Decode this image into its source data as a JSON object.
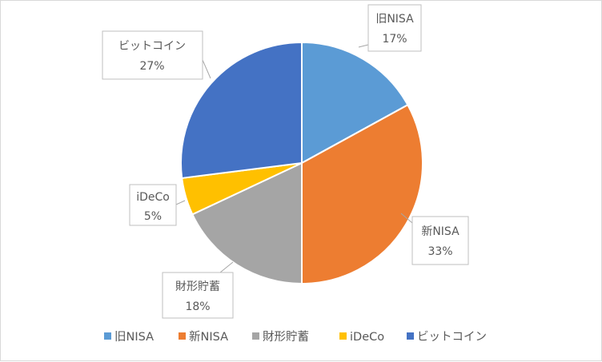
{
  "chart_data": {
    "type": "pie",
    "title": "",
    "categories": [
      "旧NISA",
      "新NISA",
      "財形貯蓄",
      "iDeCo",
      "ビットコイン"
    ],
    "values": [
      17,
      33,
      18,
      5,
      27
    ],
    "value_labels": [
      "17%",
      "33%",
      "18%",
      "5%",
      "27%"
    ],
    "colors": [
      "#5B9BD5",
      "#ED7D31",
      "#A5A5A5",
      "#FFC000",
      "#4472C4"
    ],
    "legend_position": "bottom",
    "start_angle": "12 o'clock, clockwise"
  }
}
